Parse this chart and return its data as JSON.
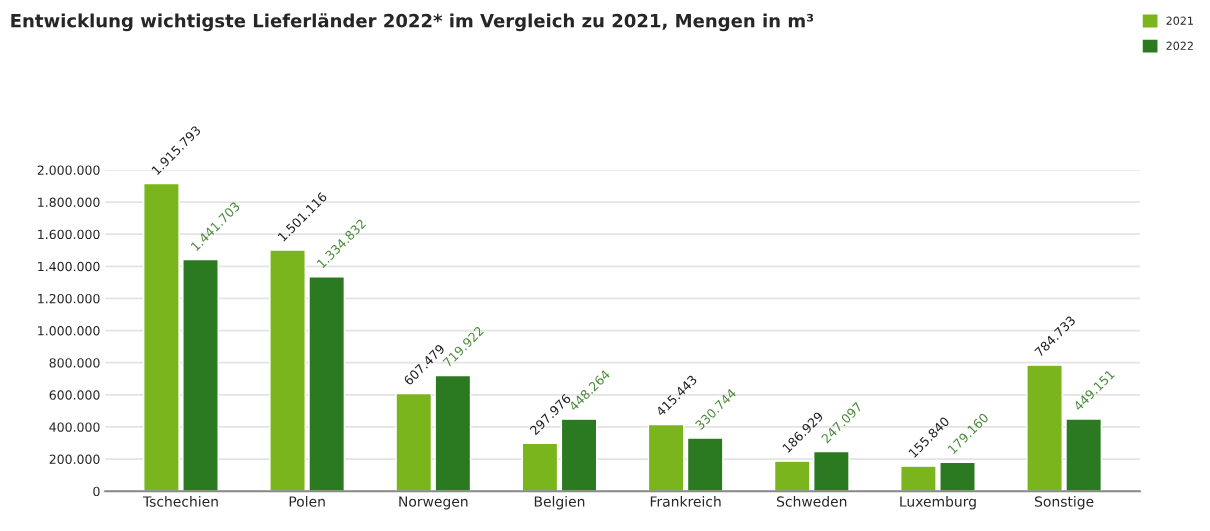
{
  "chart_data": {
    "type": "bar",
    "title": "Entwicklung wichtigste Lieferländer 2022* im Vergleich zu 2021, Mengen in m³",
    "categories": [
      "Tschechien",
      "Polen",
      "Norwegen",
      "Belgien",
      "Frankreich",
      "Schweden",
      "Luxemburg",
      "Sonstige"
    ],
    "series": [
      {
        "name": "2021",
        "color": "#7ab51d",
        "values": [
          1915793,
          1501116,
          607479,
          297976,
          415443,
          186929,
          155840,
          784733
        ],
        "value_labels": [
          "1.915.793",
          "1.501.116",
          "607.479",
          "297.976",
          "415.443",
          "186.929",
          "155.840",
          "784.733"
        ]
      },
      {
        "name": "2022",
        "color": "#2b7a22",
        "values": [
          1441703,
          1334832,
          719922,
          448264,
          330744,
          247097,
          179160,
          449151
        ],
        "value_labels": [
          "1.441.703",
          "1.334.832",
          "719.922",
          "448.264",
          "330.744",
          "247.097",
          "179.160",
          "449.151"
        ]
      }
    ],
    "ylim": [
      0,
      2000000
    ],
    "yticks": [
      {
        "value": 0,
        "label": "0"
      },
      {
        "value": 200000,
        "label": "200.000"
      },
      {
        "value": 400000,
        "label": "400.000"
      },
      {
        "value": 600000,
        "label": "600.000"
      },
      {
        "value": 800000,
        "label": "800.000"
      },
      {
        "value": 1000000,
        "label": "1.000.000"
      },
      {
        "value": 1200000,
        "label": "1.200.000"
      },
      {
        "value": 1400000,
        "label": "1.400.000"
      },
      {
        "value": 1600000,
        "label": "1.600.000"
      },
      {
        "value": 1800000,
        "label": "1.800.000"
      },
      {
        "value": 2000000,
        "label": "2.000.000"
      }
    ],
    "grid": "y",
    "legend": "top right"
  }
}
